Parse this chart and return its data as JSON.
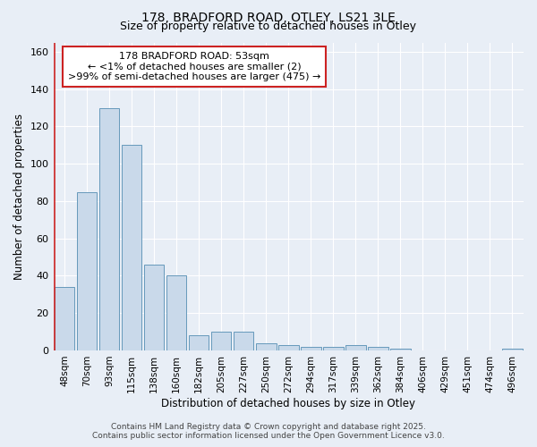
{
  "title1": "178, BRADFORD ROAD, OTLEY, LS21 3LE",
  "title2": "Size of property relative to detached houses in Otley",
  "xlabel": "Distribution of detached houses by size in Otley",
  "ylabel": "Number of detached properties",
  "categories": [
    "48sqm",
    "70sqm",
    "93sqm",
    "115sqm",
    "138sqm",
    "160sqm",
    "182sqm",
    "205sqm",
    "227sqm",
    "250sqm",
    "272sqm",
    "294sqm",
    "317sqm",
    "339sqm",
    "362sqm",
    "384sqm",
    "406sqm",
    "429sqm",
    "451sqm",
    "474sqm",
    "496sqm"
  ],
  "values": [
    34,
    85,
    130,
    110,
    46,
    40,
    8,
    10,
    10,
    4,
    3,
    2,
    2,
    3,
    2,
    1,
    0,
    0,
    0,
    0,
    1
  ],
  "bar_color": "#c9d9ea",
  "bar_edge_color": "#6699bb",
  "highlight_color": "#cc2222",
  "ylim": [
    0,
    165
  ],
  "yticks": [
    0,
    20,
    40,
    60,
    80,
    100,
    120,
    140,
    160
  ],
  "annotation_title": "178 BRADFORD ROAD: 53sqm",
  "annotation_line1": "← <1% of detached houses are smaller (2)",
  "annotation_line2": ">99% of semi-detached houses are larger (475) →",
  "footer_line1": "Contains HM Land Registry data © Crown copyright and database right 2025.",
  "footer_line2": "Contains public sector information licensed under the Open Government Licence v3.0.",
  "bg_color": "#e8eef6",
  "plot_bg_color": "#e8eef6",
  "grid_color": "#ffffff",
  "title_fontsize": 10,
  "subtitle_fontsize": 9,
  "axis_label_fontsize": 8.5,
  "tick_fontsize": 7.5,
  "annotation_fontsize": 8,
  "footer_fontsize": 6.5
}
